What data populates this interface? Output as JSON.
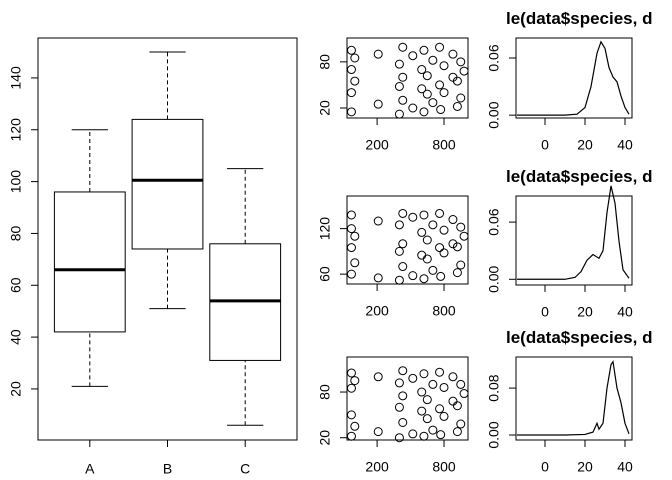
{
  "chart_data": [
    {
      "type": "box",
      "categories": [
        "A",
        "B",
        "C"
      ],
      "min": [
        21,
        51,
        6
      ],
      "q1": [
        42,
        74,
        31
      ],
      "median": [
        66,
        100.5,
        54
      ],
      "q3": [
        96,
        124,
        76
      ],
      "max": [
        120,
        150,
        105
      ],
      "ylim": [
        0.3,
        155.4
      ],
      "yticks": [
        20,
        40,
        60,
        80,
        100,
        120,
        140
      ]
    },
    {
      "type": "scatter",
      "x": [
        -30,
        -30,
        -30,
        -30,
        0,
        0,
        210,
        210,
        400,
        400,
        400,
        430,
        430,
        430,
        520,
        520,
        600,
        600,
        620,
        620,
        650,
        650,
        700,
        700,
        760,
        760,
        770,
        800,
        800,
        880,
        880,
        920,
        920,
        950,
        950,
        980
      ],
      "y": [
        15,
        40,
        70,
        95,
        55,
        85,
        25,
        90,
        12,
        48,
        77,
        30,
        60,
        99,
        20,
        88,
        45,
        70,
        15,
        95,
        38,
        62,
        27,
        82,
        50,
        99,
        18,
        40,
        75,
        60,
        90,
        22,
        55,
        33,
        80,
        68
      ],
      "xlim": [
        -70,
        1015
      ],
      "ylim": [
        7,
        111
      ],
      "xticks": [
        200,
        800
      ],
      "yticks": [
        20,
        80
      ]
    },
    {
      "type": "density",
      "title": "le(data$species, d",
      "x": [
        -14,
        0,
        10,
        16,
        20,
        23,
        26,
        28,
        30,
        32,
        34,
        36,
        38,
        40,
        42
      ],
      "values": [
        0,
        0,
        0,
        0.001,
        0.008,
        0.03,
        0.065,
        0.077,
        0.07,
        0.05,
        0.04,
        0.035,
        0.02,
        0.008,
        0.001
      ],
      "xlim": [
        -14.5,
        43.5
      ],
      "ylim": [
        -0.003,
        0.081
      ],
      "xticks": [
        0,
        20,
        40
      ],
      "yticks": [
        {
          "value": 0,
          "label": "0.00"
        },
        {
          "value": 0.06,
          "label": "0.06"
        }
      ]
    },
    {
      "type": "scatter",
      "x": [
        -30,
        -30,
        -30,
        -30,
        0,
        0,
        210,
        210,
        400,
        400,
        400,
        430,
        430,
        430,
        520,
        520,
        600,
        600,
        620,
        620,
        650,
        650,
        700,
        700,
        760,
        760,
        770,
        800,
        800,
        880,
        880,
        920,
        920,
        950,
        950,
        980
      ],
      "y": [
        60,
        95,
        120,
        138,
        75,
        110,
        55,
        130,
        52,
        90,
        125,
        70,
        100,
        140,
        58,
        135,
        85,
        115,
        54,
        138,
        80,
        105,
        65,
        125,
        95,
        140,
        57,
        88,
        118,
        100,
        132,
        62,
        96,
        72,
        122,
        110
      ],
      "xlim": [
        -70,
        1015
      ],
      "ylim": [
        47,
        163
      ],
      "xticks": [
        200,
        800
      ],
      "yticks": [
        60,
        120
      ]
    },
    {
      "type": "density",
      "title": "le(data$species, d",
      "x": [
        -14,
        0,
        10,
        15,
        18,
        21,
        24,
        27,
        29,
        31,
        33,
        35,
        37,
        39,
        42
      ],
      "values": [
        0,
        0,
        0,
        0.002,
        0.008,
        0.02,
        0.026,
        0.022,
        0.03,
        0.07,
        0.098,
        0.08,
        0.04,
        0.01,
        0.001
      ],
      "xlim": [
        -14.5,
        43.5
      ],
      "ylim": [
        -0.006,
        0.0874
      ],
      "xticks": [
        0,
        20,
        40
      ],
      "yticks": [
        {
          "value": 0,
          "label": "0.00"
        },
        {
          "value": 0.06,
          "label": "0.06"
        }
      ]
    },
    {
      "type": "scatter",
      "x": [
        -30,
        -30,
        -30,
        -30,
        0,
        0,
        210,
        210,
        400,
        400,
        400,
        430,
        430,
        430,
        520,
        520,
        600,
        600,
        620,
        620,
        650,
        650,
        700,
        700,
        760,
        760,
        770,
        800,
        800,
        880,
        880,
        920,
        920,
        950,
        950,
        980
      ],
      "y": [
        22,
        50,
        85,
        105,
        35,
        95,
        28,
        100,
        20,
        60,
        92,
        40,
        75,
        108,
        25,
        98,
        55,
        80,
        22,
        104,
        45,
        70,
        30,
        90,
        58,
        106,
        24,
        48,
        86,
        68,
        100,
        28,
        62,
        38,
        90,
        78
      ],
      "xlim": [
        -70,
        1015
      ],
      "ylim": [
        17,
        126
      ],
      "xticks": [
        200,
        800
      ],
      "yticks": [
        20,
        80
      ]
    },
    {
      "type": "density",
      "title": "le(data$species, d",
      "x": [
        -14,
        0,
        10,
        20,
        24,
        26,
        27,
        29,
        31,
        33,
        34,
        36,
        38,
        40,
        42
      ],
      "values": [
        0,
        0,
        0,
        0.001,
        0.005,
        0.02,
        0.01,
        0.02,
        0.08,
        0.12,
        0.125,
        0.08,
        0.055,
        0.02,
        0.002
      ],
      "xlim": [
        -14.5,
        43.5
      ],
      "ylim": [
        -0.0085,
        0.133
      ],
      "xticks": [
        0,
        20,
        40
      ],
      "yticks": [
        {
          "value": 0,
          "label": "0.00"
        },
        {
          "value": 0.08,
          "label": "0.08"
        }
      ]
    }
  ]
}
